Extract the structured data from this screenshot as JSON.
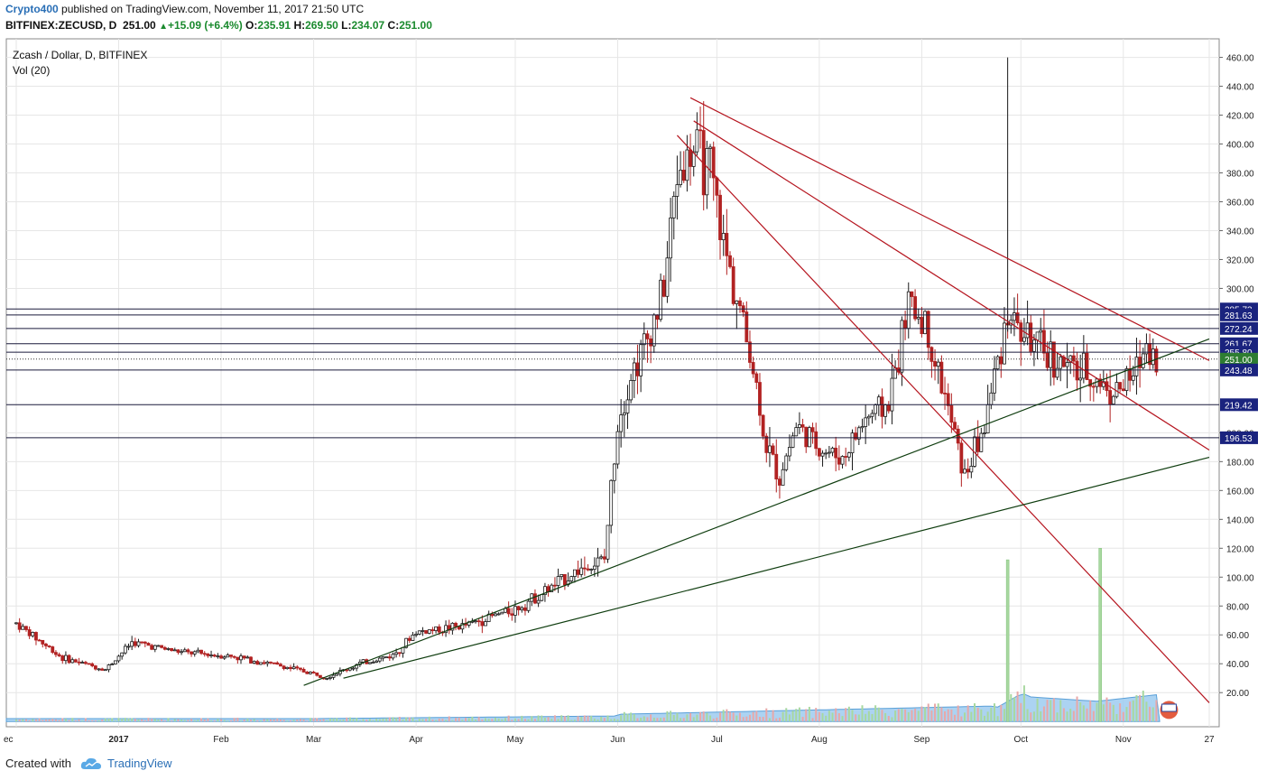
{
  "header": {
    "author": "Crypto400",
    "published": "published on TradingView.com, November 11, 2017 21:50 UTC",
    "symbol": "BITFINEX:ZECUSD, D",
    "price": "251.00",
    "change_arrow": "▲",
    "change": "+15.09 (+6.4%)",
    "ohlc_o_label": "O:",
    "ohlc_o": "235.91",
    "ohlc_h_label": "H:",
    "ohlc_h": "269.50",
    "ohlc_l_label": "L:",
    "ohlc_l": "234.07",
    "ohlc_c_label": "C:",
    "ohlc_c": "251.00"
  },
  "legend": {
    "title": "Zcash / Dollar, D, BITFINEX",
    "indicator": "Vol (20)"
  },
  "footer": {
    "created_with": "Created with",
    "brand": "TradingView",
    "brand_icon": "cloud-icon"
  },
  "colors": {
    "up": "#1a1a1a",
    "down": "#b22222",
    "resistance_line": "#b5141e",
    "support_line": "#0f3d0f",
    "horizontal_level": "#1a1a3c",
    "volume_up": "#a8d8a0",
    "volume_down": "#e8a8a8",
    "volume_ma_fill": "#9ecbf0",
    "price_label_bg": "#1a237e",
    "last_price_bg": "#2e7d32",
    "grid": "#e6e6e6"
  },
  "chart_data": {
    "type": "candlestick",
    "title": "Zcash / Dollar, D, BITFINEX",
    "ylim": [
      0,
      470
    ],
    "y_ticks": [
      20,
      40,
      60,
      80,
      100,
      120,
      140,
      160,
      180,
      200,
      300,
      320,
      340,
      360,
      380,
      400,
      420,
      440,
      460
    ],
    "x_ticks": [
      "ec",
      "2017",
      "Feb",
      "Mar",
      "Apr",
      "May",
      "Jun",
      "Jul",
      "Aug",
      "Sep",
      "Oct",
      "Nov",
      "27"
    ],
    "grid": true,
    "price_points": [
      {
        "date": "2016-12-01",
        "price": 68
      },
      {
        "date": "2016-12-15",
        "price": 44
      },
      {
        "date": "2016-12-28",
        "price": 36
      },
      {
        "date": "2017-01-05",
        "price": 55
      },
      {
        "date": "2017-01-20",
        "price": 48
      },
      {
        "date": "2017-02-05",
        "price": 45
      },
      {
        "date": "2017-02-20",
        "price": 38
      },
      {
        "date": "2017-03-05",
        "price": 31
      },
      {
        "date": "2017-03-15",
        "price": 40
      },
      {
        "date": "2017-03-25",
        "price": 46
      },
      {
        "date": "2017-04-01",
        "price": 62
      },
      {
        "date": "2017-04-15",
        "price": 66
      },
      {
        "date": "2017-05-01",
        "price": 78
      },
      {
        "date": "2017-05-10",
        "price": 90
      },
      {
        "date": "2017-05-20",
        "price": 105
      },
      {
        "date": "2017-05-28",
        "price": 112
      },
      {
        "date": "2017-06-01",
        "price": 210
      },
      {
        "date": "2017-06-05",
        "price": 240
      },
      {
        "date": "2017-06-10",
        "price": 265
      },
      {
        "date": "2017-06-15",
        "price": 300
      },
      {
        "date": "2017-06-19",
        "price": 380
      },
      {
        "date": "2017-06-24",
        "price": 395
      },
      {
        "date": "2017-06-29",
        "price": 380
      },
      {
        "date": "2017-07-03",
        "price": 330
      },
      {
        "date": "2017-07-08",
        "price": 285
      },
      {
        "date": "2017-07-12",
        "price": 245
      },
      {
        "date": "2017-07-16",
        "price": 190
      },
      {
        "date": "2017-07-20",
        "price": 170
      },
      {
        "date": "2017-07-25",
        "price": 205
      },
      {
        "date": "2017-08-01",
        "price": 190
      },
      {
        "date": "2017-08-08",
        "price": 182
      },
      {
        "date": "2017-08-15",
        "price": 210
      },
      {
        "date": "2017-08-22",
        "price": 220
      },
      {
        "date": "2017-08-28",
        "price": 290
      },
      {
        "date": "2017-09-02",
        "price": 275
      },
      {
        "date": "2017-09-08",
        "price": 225
      },
      {
        "date": "2017-09-14",
        "price": 170
      },
      {
        "date": "2017-09-20",
        "price": 205
      },
      {
        "date": "2017-09-27",
        "price": 285
      },
      {
        "date": "2017-10-01",
        "price": 270
      },
      {
        "date": "2017-10-08",
        "price": 255
      },
      {
        "date": "2017-10-15",
        "price": 245
      },
      {
        "date": "2017-10-22",
        "price": 240
      },
      {
        "date": "2017-10-29",
        "price": 228
      },
      {
        "date": "2017-11-04",
        "price": 238
      },
      {
        "date": "2017-11-08",
        "price": 262
      },
      {
        "date": "2017-11-11",
        "price": 251
      }
    ],
    "volume_spikes": [
      {
        "date": "2017-09-27",
        "volume_level": 112
      },
      {
        "date": "2017-10-25",
        "volume_level": 120
      }
    ],
    "horizontal_levels": [
      285.73,
      281.63,
      272.24,
      261.67,
      255.8,
      243.48,
      219.42,
      196.53
    ],
    "last_price": 251.0,
    "price_labels": [
      "285.73",
      "281.63",
      "272.24",
      "261.67",
      "255.80",
      "251.00",
      "243.48",
      "219.42",
      "196.53"
    ],
    "trendlines": [
      {
        "kind": "resistance",
        "from": {
          "date": "2017-06-23",
          "price": 432
        },
        "to": {
          "date": "2017-11-27",
          "price": 250
        }
      },
      {
        "kind": "resistance",
        "from": {
          "date": "2017-06-24",
          "price": 416
        },
        "to": {
          "date": "2017-11-27",
          "price": 188
        }
      },
      {
        "kind": "resistance",
        "from": {
          "date": "2017-06-19",
          "price": 406
        },
        "to": {
          "date": "2017-11-27",
          "price": 13
        }
      },
      {
        "kind": "support",
        "from": {
          "date": "2017-02-26",
          "price": 25
        },
        "to": {
          "date": "2017-11-27",
          "price": 265
        }
      },
      {
        "kind": "support",
        "from": {
          "date": "2017-03-10",
          "price": 30
        },
        "to": {
          "date": "2017-11-27",
          "price": 183
        }
      }
    ]
  }
}
